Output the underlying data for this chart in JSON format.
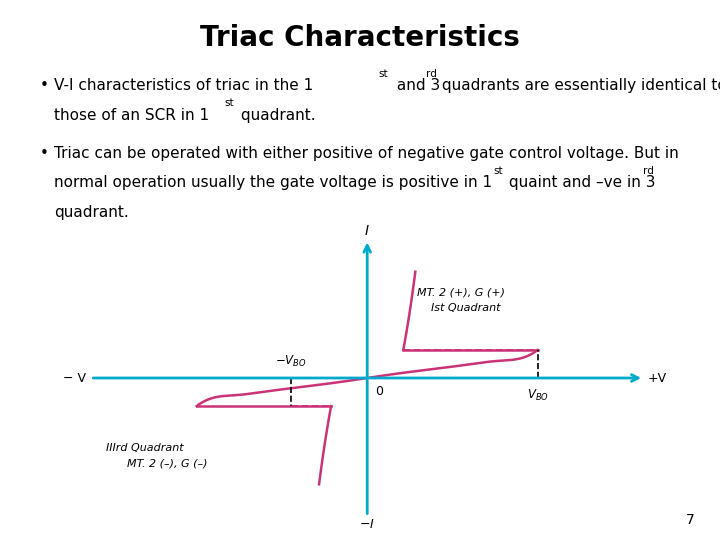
{
  "title": "Triac Characteristics",
  "page_num": "7",
  "curve_color": "#CC3377",
  "axis_color": "#00AACC",
  "background_color": "#FFFFFF",
  "fs_body": 11,
  "fs_sup": 7.5,
  "fs_title": 20,
  "vbo": 0.85,
  "neg_vbo": -0.38,
  "v_on": 0.18,
  "i_bo": 0.28,
  "label_q1_line1": "MT. 2 (+), G (+)",
  "label_q1_line2": "Ist Quadrant",
  "label_q3_line1": "IIIrd Quadrant",
  "label_q3_line2": "MT. 2 (–), G (–)"
}
